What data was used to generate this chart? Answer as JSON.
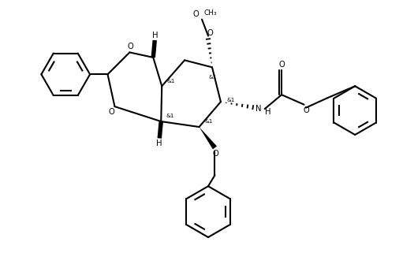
{
  "bg_color": "#ffffff",
  "line_color": "#000000",
  "line_width": 1.5,
  "fig_width": 5.25,
  "fig_height": 3.4,
  "dpi": 100,
  "xlim": [
    0,
    10.5
  ],
  "ylim": [
    0,
    6.8
  ]
}
